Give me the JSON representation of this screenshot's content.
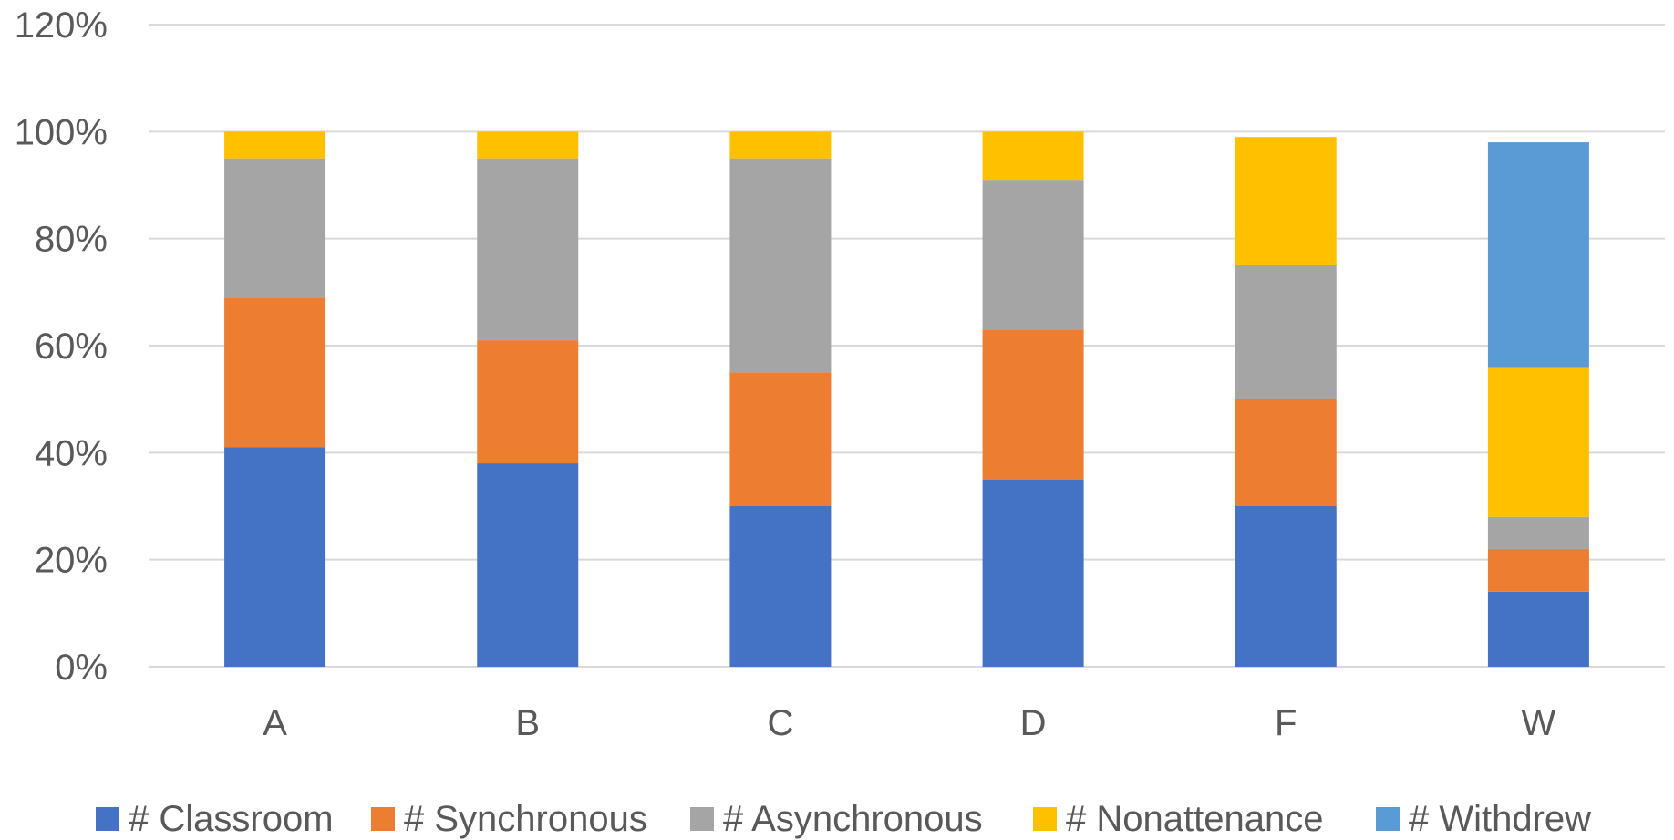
{
  "chart_data": {
    "type": "bar",
    "stacked": true,
    "title": "",
    "xlabel": "",
    "ylabel": "",
    "categories": [
      "A",
      "B",
      "C",
      "D",
      "F",
      "W"
    ],
    "ylim": [
      0,
      1.2
    ],
    "yticks": [
      0,
      0.2,
      0.4,
      0.6,
      0.8,
      1.0,
      1.2
    ],
    "ytick_labels": [
      "0%",
      "20%",
      "40%",
      "60%",
      "80%",
      "100%",
      "120%"
    ],
    "grid": true,
    "legend_position": "bottom",
    "series": [
      {
        "name": "# Classroom",
        "color": "#4472C4",
        "values": [
          0.41,
          0.38,
          0.3,
          0.35,
          0.3,
          0.14
        ]
      },
      {
        "name": "# Synchronous",
        "color": "#ED7D31",
        "values": [
          0.28,
          0.23,
          0.25,
          0.28,
          0.2,
          0.08
        ]
      },
      {
        "name": "# Asynchronous",
        "color": "#A5A5A5",
        "values": [
          0.26,
          0.34,
          0.4,
          0.28,
          0.25,
          0.06
        ]
      },
      {
        "name": "# Nonattenance",
        "color": "#FFC000",
        "values": [
          0.05,
          0.05,
          0.05,
          0.09,
          0.24,
          0.28
        ]
      },
      {
        "name": "# Withdrew",
        "color": "#5B9BD5",
        "values": [
          0,
          0,
          0,
          0,
          0,
          0.42
        ]
      }
    ]
  }
}
